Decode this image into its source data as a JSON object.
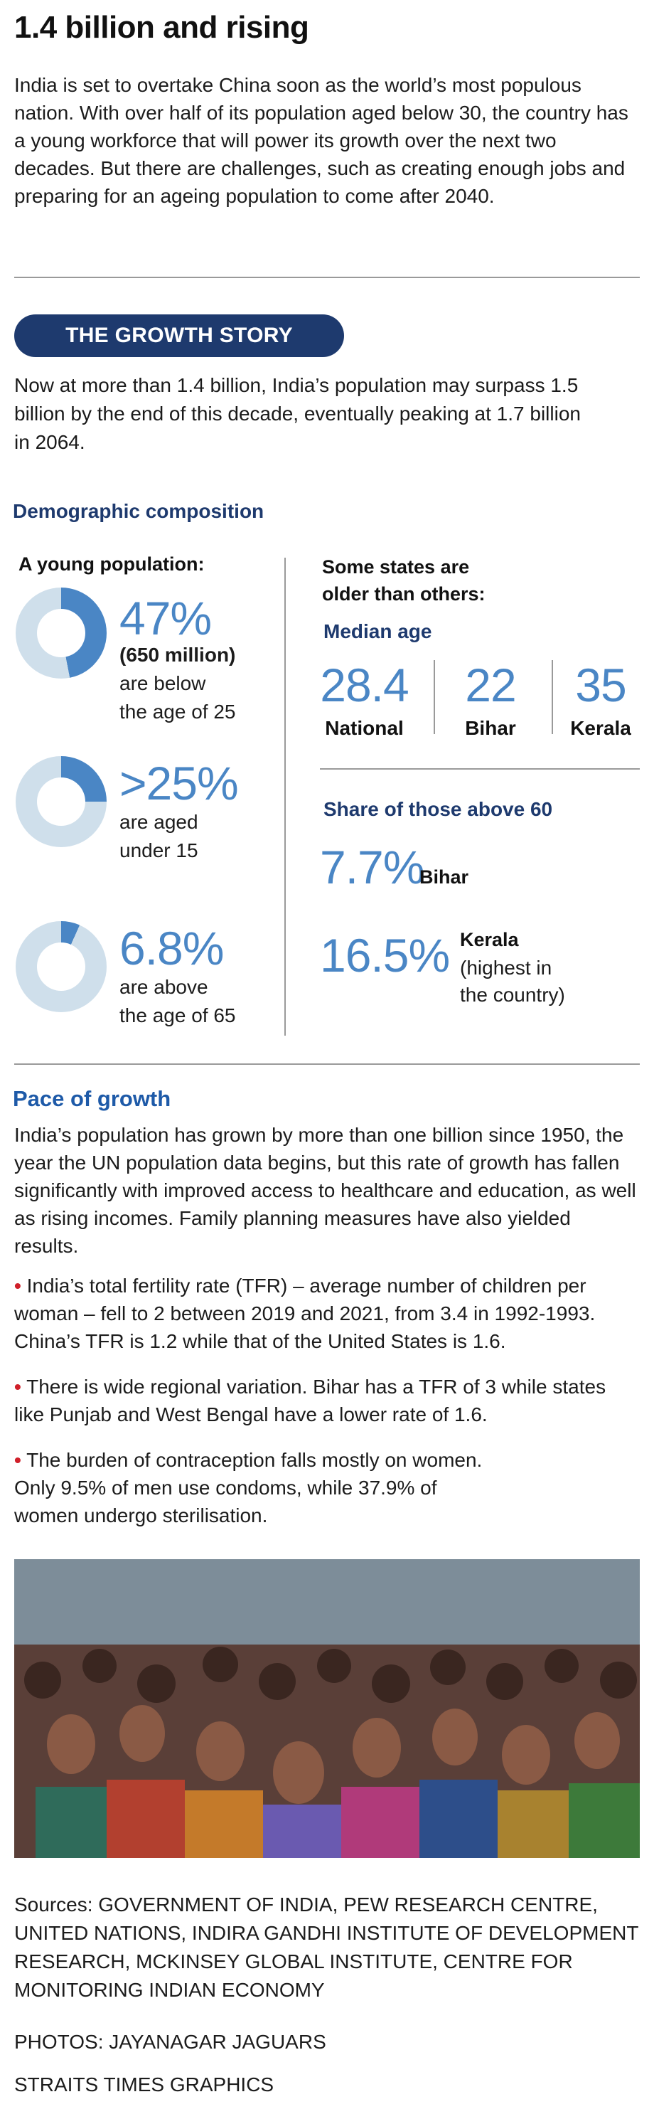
{
  "headline": "1.4 billion and rising",
  "intro": "India is set to overtake China soon as the world’s most populous nation. With over half of its population aged below 30, the country has a young workforce that will power its growth over the next two decades. But there are challenges, such as creating enough jobs and preparing for an ageing population to come after 2040.",
  "growth_story": {
    "pill_label": "THE GROWTH STORY",
    "text": "Now at more than 1.4 billion, India’s population may surpass 1.5 billion by the end of this decade, eventually peaking at 1.7 billion in 2064."
  },
  "demographic": {
    "title": "Demographic composition",
    "young_title": "A young population:",
    "stats": [
      {
        "value": "47%",
        "sub_bold": "(650 million)",
        "line1": "are below",
        "line2": "the age of 25",
        "fraction": 0.47
      },
      {
        "value": ">25%",
        "line1": "are aged",
        "line2": "under 15",
        "fraction": 0.25
      },
      {
        "value": "6.8%",
        "line1": "are above",
        "line2": "the age of 65",
        "fraction": 0.068
      }
    ],
    "states_title_1": "Some states are",
    "states_title_2": "older than others:",
    "median_title": "Median age",
    "median": [
      {
        "value": "28.4",
        "label": "National"
      },
      {
        "value": "22",
        "label": "Bihar"
      },
      {
        "value": "35",
        "label": "Kerala"
      }
    ],
    "share_title": "Share of those above 60",
    "share": [
      {
        "value": "7.7%",
        "label": "Bihar"
      },
      {
        "value": "16.5%",
        "label": "Kerala",
        "note1": "(highest in",
        "note2": "the country)"
      }
    ]
  },
  "pace": {
    "title": "Pace of growth",
    "text": "India’s population has grown by more than one billion since 1950, the year the UN population data begins, but this rate of growth has fallen significantly with improved access to healthcare and education, as well as rising incomes. Family planning measures have also yielded results.",
    "bullets": [
      "India’s total fertility rate (TFR) – average number of children per woman – fell to 2 between 2019 and 2021, from 3.4 in 1992-1993. China’s TFR is 1.2 while that of the United States is 1.6.",
      "There is wide regional variation. Bihar has a TFR of 3 while states like Punjab and West Bengal have a lower rate of 1.6.",
      "The burden of contraception falls mostly on women. Only 9.5% of men use condoms, while 37.9% of women undergo sterilisation."
    ],
    "bullet_mark": "•"
  },
  "sources": "Sources: GOVERNMENT OF INDIA, PEW RESEARCH CENTRE, UNITED NATIONS, INDIRA GANDHI INSTITUTE OF DEVELOPMENT RESEARCH, MCKINSEY GLOBAL INSTITUTE, CENTRE FOR MONITORING INDIAN ECONOMY",
  "photo_credit": "PHOTOS: JAYANAGAR JAGUARS",
  "graphics_credit": "STRAITS TIMES GRAPHICS",
  "colors": {
    "navy": "#1e3a6e",
    "accent_blue": "#4a86c5",
    "donut_light": "#cfdfeb",
    "donut_fill": "#4a86c5",
    "bullet_red": "#d0202a"
  }
}
